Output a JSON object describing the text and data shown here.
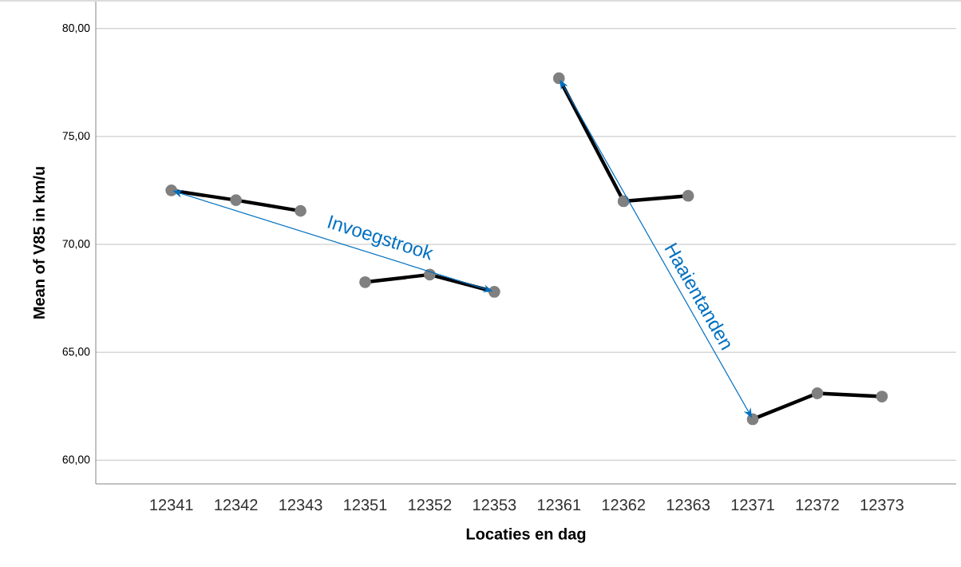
{
  "chart_data": {
    "type": "line",
    "xlabel": "Locaties en dag",
    "ylabel": "Mean of V85 in km/u",
    "categories": [
      "12341",
      "12342",
      "12343",
      "12351",
      "12352",
      "12353",
      "12361",
      "12362",
      "12363",
      "12371",
      "12372",
      "12373"
    ],
    "series": [
      {
        "color": "#000000",
        "values": [
          72.5,
          72.05,
          71.55,
          null,
          null,
          null,
          null,
          null,
          null,
          null,
          null,
          null
        ]
      },
      {
        "color": "#000000",
        "values": [
          null,
          null,
          null,
          68.25,
          68.6,
          67.8,
          null,
          null,
          null,
          null,
          null,
          null
        ]
      },
      {
        "color": "#000000",
        "values": [
          null,
          null,
          null,
          null,
          null,
          null,
          77.7,
          72.0,
          72.25,
          null,
          null,
          null
        ]
      },
      {
        "color": "#000000",
        "values": [
          null,
          null,
          null,
          null,
          null,
          null,
          null,
          null,
          null,
          61.9,
          63.1,
          62.95
        ]
      }
    ],
    "ylim": [
      58.9,
      81.25
    ],
    "yticks": [
      {
        "value": 60,
        "label": "60,00"
      },
      {
        "value": 65,
        "label": "65,00"
      },
      {
        "value": 70,
        "label": "70,00"
      },
      {
        "value": 75,
        "label": "75,00"
      },
      {
        "value": 80,
        "label": "80,00"
      }
    ],
    "grid": "y",
    "marker": "circle",
    "line_style": "solid",
    "annotations": [
      "Invoegstrook",
      "Haaientanden"
    ]
  }
}
